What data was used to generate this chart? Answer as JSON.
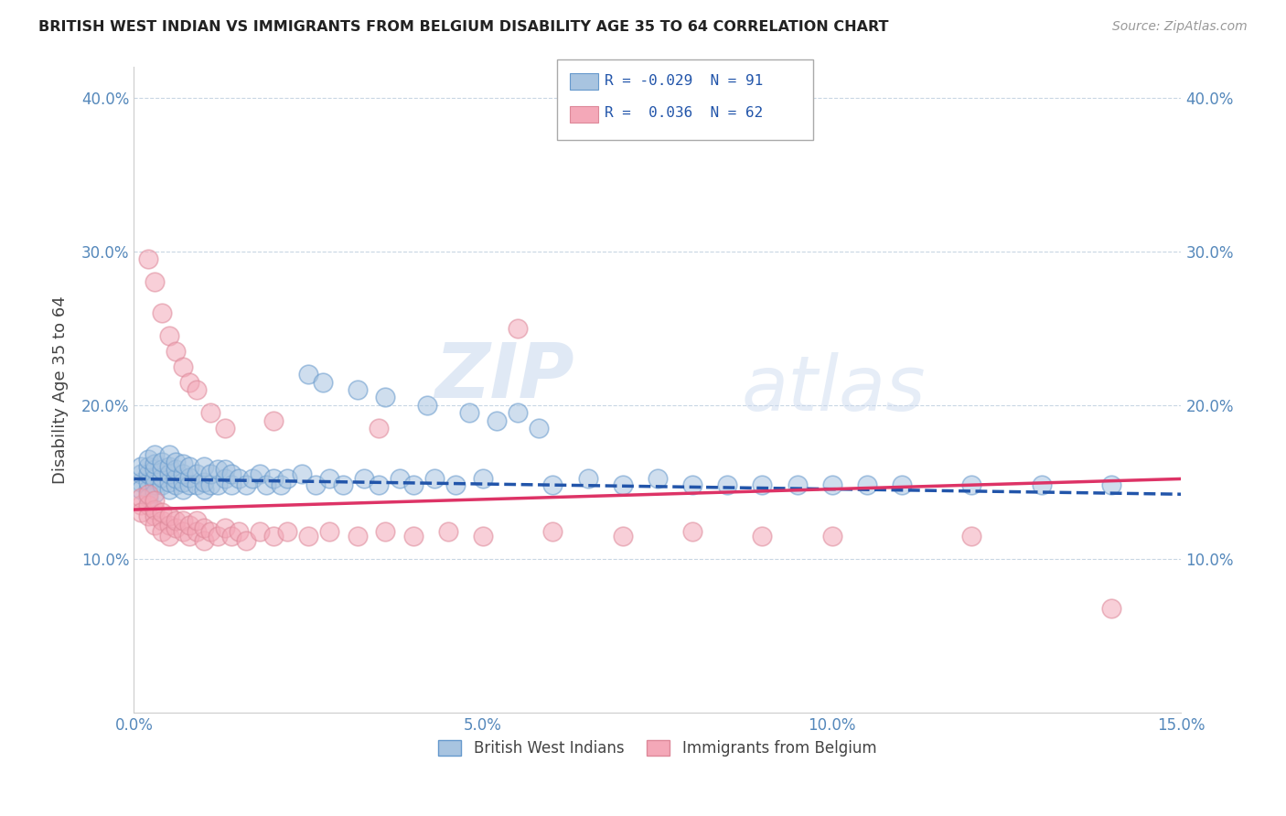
{
  "title": "BRITISH WEST INDIAN VS IMMIGRANTS FROM BELGIUM DISABILITY AGE 35 TO 64 CORRELATION CHART",
  "source": "Source: ZipAtlas.com",
  "ylabel": "Disability Age 35 to 64",
  "xmin": 0.0,
  "xmax": 0.15,
  "ymin": 0.0,
  "ymax": 0.42,
  "xticks": [
    0.0,
    0.05,
    0.1,
    0.15
  ],
  "xtick_labels": [
    "0.0%",
    "5.0%",
    "10.0%",
    "15.0%"
  ],
  "yticks": [
    0.1,
    0.2,
    0.3,
    0.4
  ],
  "ytick_labels": [
    "10.0%",
    "20.0%",
    "30.0%",
    "40.0%"
  ],
  "legend_labels": [
    "British West Indians",
    "Immigrants from Belgium"
  ],
  "blue_color": "#a8c4e0",
  "blue_edge_color": "#6699cc",
  "pink_color": "#f4a8b8",
  "pink_edge_color": "#dd8899",
  "blue_line_color": "#2255aa",
  "pink_line_color": "#dd3366",
  "watermark_zip": "ZIP",
  "watermark_atlas": "atlas",
  "blue_scatter_x": [
    0.001,
    0.001,
    0.001,
    0.001,
    0.002,
    0.002,
    0.002,
    0.002,
    0.002,
    0.002,
    0.003,
    0.003,
    0.003,
    0.003,
    0.003,
    0.003,
    0.004,
    0.004,
    0.004,
    0.004,
    0.005,
    0.005,
    0.005,
    0.005,
    0.005,
    0.006,
    0.006,
    0.006,
    0.006,
    0.007,
    0.007,
    0.007,
    0.007,
    0.008,
    0.008,
    0.008,
    0.009,
    0.009,
    0.01,
    0.01,
    0.01,
    0.011,
    0.011,
    0.012,
    0.012,
    0.013,
    0.013,
    0.014,
    0.014,
    0.015,
    0.016,
    0.017,
    0.018,
    0.019,
    0.02,
    0.021,
    0.022,
    0.024,
    0.026,
    0.028,
    0.03,
    0.033,
    0.035,
    0.038,
    0.04,
    0.043,
    0.046,
    0.05,
    0.055,
    0.06,
    0.065,
    0.07,
    0.075,
    0.08,
    0.085,
    0.09,
    0.095,
    0.1,
    0.105,
    0.11,
    0.12,
    0.13,
    0.14,
    0.025,
    0.027,
    0.032,
    0.036,
    0.042,
    0.048,
    0.052,
    0.058
  ],
  "blue_scatter_y": [
    0.15,
    0.155,
    0.16,
    0.145,
    0.145,
    0.15,
    0.155,
    0.16,
    0.165,
    0.14,
    0.148,
    0.152,
    0.158,
    0.162,
    0.168,
    0.143,
    0.148,
    0.153,
    0.158,
    0.163,
    0.145,
    0.15,
    0.155,
    0.16,
    0.168,
    0.148,
    0.152,
    0.158,
    0.163,
    0.145,
    0.15,
    0.155,
    0.162,
    0.148,
    0.153,
    0.16,
    0.148,
    0.155,
    0.145,
    0.15,
    0.16,
    0.148,
    0.155,
    0.148,
    0.158,
    0.152,
    0.158,
    0.148,
    0.155,
    0.152,
    0.148,
    0.152,
    0.155,
    0.148,
    0.152,
    0.148,
    0.152,
    0.155,
    0.148,
    0.152,
    0.148,
    0.152,
    0.148,
    0.152,
    0.148,
    0.152,
    0.148,
    0.152,
    0.195,
    0.148,
    0.152,
    0.148,
    0.152,
    0.148,
    0.148,
    0.148,
    0.148,
    0.148,
    0.148,
    0.148,
    0.148,
    0.148,
    0.148,
    0.22,
    0.215,
    0.21,
    0.205,
    0.2,
    0.195,
    0.19,
    0.185
  ],
  "pink_scatter_x": [
    0.001,
    0.001,
    0.001,
    0.002,
    0.002,
    0.002,
    0.003,
    0.003,
    0.003,
    0.003,
    0.004,
    0.004,
    0.004,
    0.005,
    0.005,
    0.005,
    0.006,
    0.006,
    0.007,
    0.007,
    0.008,
    0.008,
    0.009,
    0.009,
    0.01,
    0.01,
    0.011,
    0.012,
    0.013,
    0.014,
    0.015,
    0.016,
    0.018,
    0.02,
    0.022,
    0.025,
    0.028,
    0.032,
    0.036,
    0.04,
    0.045,
    0.05,
    0.06,
    0.07,
    0.08,
    0.09,
    0.1,
    0.12,
    0.14,
    0.002,
    0.003,
    0.004,
    0.005,
    0.006,
    0.007,
    0.008,
    0.009,
    0.011,
    0.013,
    0.02,
    0.035,
    0.055
  ],
  "pink_scatter_y": [
    0.135,
    0.14,
    0.13,
    0.135,
    0.128,
    0.142,
    0.128,
    0.132,
    0.138,
    0.122,
    0.125,
    0.13,
    0.118,
    0.122,
    0.128,
    0.115,
    0.12,
    0.125,
    0.118,
    0.125,
    0.115,
    0.122,
    0.118,
    0.125,
    0.112,
    0.12,
    0.118,
    0.115,
    0.12,
    0.115,
    0.118,
    0.112,
    0.118,
    0.115,
    0.118,
    0.115,
    0.118,
    0.115,
    0.118,
    0.115,
    0.118,
    0.115,
    0.118,
    0.115,
    0.118,
    0.115,
    0.115,
    0.115,
    0.068,
    0.295,
    0.28,
    0.26,
    0.245,
    0.235,
    0.225,
    0.215,
    0.21,
    0.195,
    0.185,
    0.19,
    0.185,
    0.25
  ],
  "blue_trend_x": [
    0.0,
    0.15
  ],
  "blue_trend_y": [
    0.152,
    0.142
  ],
  "pink_trend_x": [
    0.0,
    0.15
  ],
  "pink_trend_y": [
    0.132,
    0.152
  ]
}
